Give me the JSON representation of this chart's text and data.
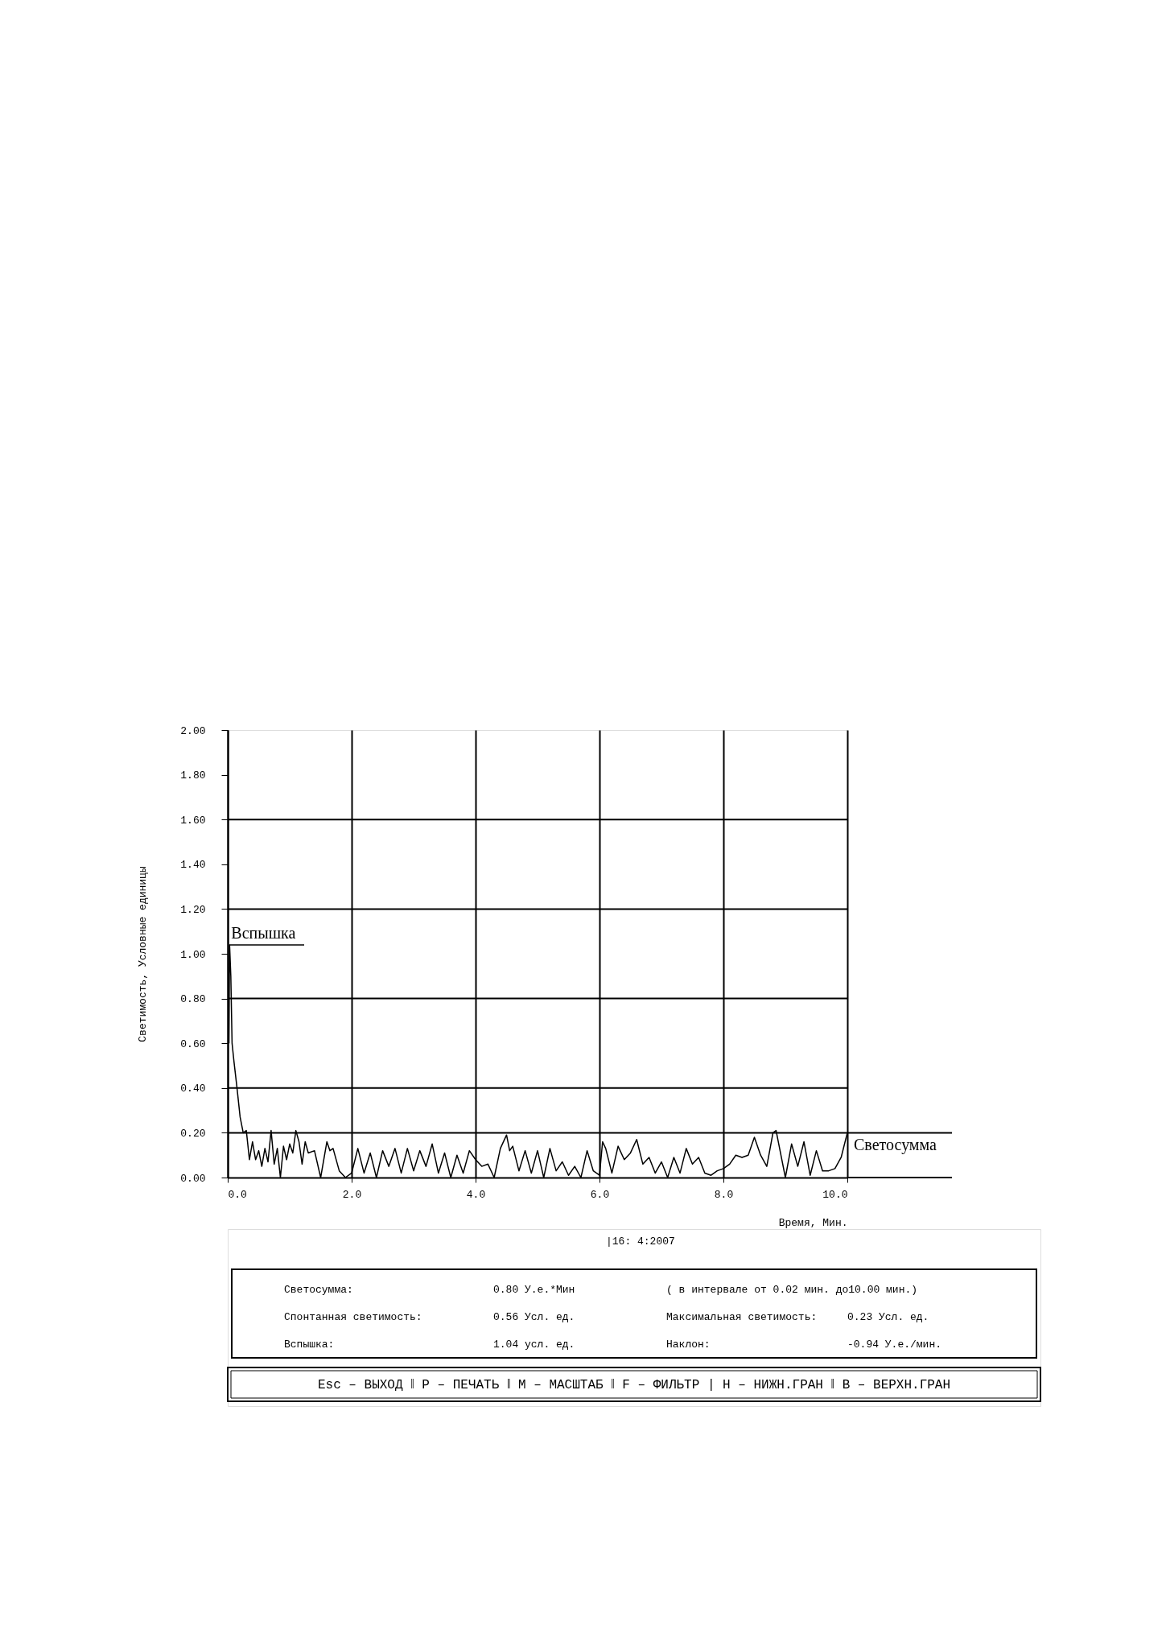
{
  "chart_data": {
    "type": "line",
    "xlabel": "Время, Мин.",
    "ylabel": "Светимость, Условные единицы",
    "xlim": [
      0,
      10
    ],
    "ylim": [
      0,
      2
    ],
    "xticks": [
      {
        "value": 0,
        "label": "0.0"
      },
      {
        "value": 2,
        "label": "2.0"
      },
      {
        "value": 4,
        "label": "4.0"
      },
      {
        "value": 6,
        "label": "6.0"
      },
      {
        "value": 8,
        "label": "8.0"
      },
      {
        "value": 10,
        "label": "10.0"
      }
    ],
    "yticks": [
      {
        "value": 0,
        "label": "0.00"
      },
      {
        "value": 0.2,
        "label": "0.20"
      },
      {
        "value": 0.4,
        "label": "0.40"
      },
      {
        "value": 0.6,
        "label": "0.60"
      },
      {
        "value": 0.8,
        "label": "0.80"
      },
      {
        "value": 1.0,
        "label": "1.00"
      },
      {
        "value": 1.2,
        "label": "1.20"
      },
      {
        "value": 1.4,
        "label": "1.40"
      },
      {
        "value": 1.6,
        "label": "1.60"
      },
      {
        "value": 1.8,
        "label": "1.80"
      },
      {
        "value": 2.0,
        "label": "2.00"
      }
    ],
    "grid": "x",
    "marker": "none",
    "line_style": "solid",
    "series": [
      {
        "color": "#000000",
        "x": [
          0.02,
          0.03,
          0.05,
          0.07,
          0.1,
          0.15,
          0.2,
          0.25,
          0.3,
          0.35,
          0.4,
          0.45,
          0.5,
          0.55,
          0.6,
          0.65,
          0.7,
          0.75,
          0.8,
          0.85,
          0.9,
          0.95,
          1.0,
          1.05,
          1.1,
          1.15,
          1.2,
          1.25,
          1.3,
          1.4,
          1.5,
          1.6,
          1.65,
          1.7,
          1.8,
          1.9,
          2.0,
          2.1,
          2.2,
          2.3,
          2.4,
          2.5,
          2.6,
          2.7,
          2.8,
          2.9,
          3.0,
          3.1,
          3.2,
          3.3,
          3.4,
          3.5,
          3.6,
          3.7,
          3.8,
          3.9,
          4.0,
          4.1,
          4.2,
          4.3,
          4.4,
          4.5,
          4.55,
          4.6,
          4.7,
          4.8,
          4.9,
          5.0,
          5.1,
          5.2,
          5.3,
          5.4,
          5.5,
          5.6,
          5.7,
          5.8,
          5.9,
          6.0,
          6.05,
          6.1,
          6.2,
          6.3,
          6.4,
          6.5,
          6.6,
          6.7,
          6.8,
          6.9,
          7.0,
          7.1,
          7.2,
          7.3,
          7.4,
          7.5,
          7.6,
          7.7,
          7.8,
          7.9,
          8.0,
          8.1,
          8.2,
          8.3,
          8.4,
          8.5,
          8.6,
          8.7,
          8.8,
          8.85,
          8.9,
          9.0,
          9.1,
          9.2,
          9.3,
          9.4,
          9.5,
          9.6,
          9.7,
          9.8,
          9.9,
          10.0
        ],
        "values": [
          0.6,
          1.04,
          0.9,
          0.6,
          0.52,
          0.4,
          0.27,
          0.2,
          0.21,
          0.08,
          0.16,
          0.08,
          0.12,
          0.05,
          0.13,
          0.07,
          0.21,
          0.06,
          0.13,
          0.0,
          0.14,
          0.08,
          0.15,
          0.11,
          0.21,
          0.16,
          0.06,
          0.16,
          0.11,
          0.12,
          0.0,
          0.16,
          0.12,
          0.13,
          0.03,
          0.0,
          0.02,
          0.13,
          0.02,
          0.11,
          0.0,
          0.12,
          0.05,
          0.13,
          0.02,
          0.13,
          0.03,
          0.12,
          0.05,
          0.15,
          0.02,
          0.11,
          0.0,
          0.1,
          0.02,
          0.12,
          0.08,
          0.05,
          0.06,
          0.0,
          0.13,
          0.19,
          0.12,
          0.14,
          0.03,
          0.12,
          0.02,
          0.12,
          0.0,
          0.13,
          0.03,
          0.07,
          0.01,
          0.05,
          0.0,
          0.12,
          0.03,
          0.01,
          0.16,
          0.13,
          0.02,
          0.14,
          0.08,
          0.11,
          0.17,
          0.06,
          0.09,
          0.02,
          0.07,
          0.0,
          0.09,
          0.02,
          0.13,
          0.06,
          0.09,
          0.02,
          0.01,
          0.03,
          0.04,
          0.06,
          0.1,
          0.09,
          0.1,
          0.18,
          0.1,
          0.05,
          0.2,
          0.21,
          0.14,
          0.0,
          0.15,
          0.05,
          0.16,
          0.01,
          0.12,
          0.03,
          0.03,
          0.04,
          0.09,
          0.2
        ]
      }
    ],
    "ref_lines": [
      {
        "axis": "y",
        "value": 0.2,
        "label": "Светосумма"
      },
      {
        "axis": "y",
        "value": 0.4,
        "label": null
      },
      {
        "axis": "y",
        "value": 0.8,
        "label": null
      },
      {
        "axis": "y",
        "value": 1.2,
        "label": null
      },
      {
        "axis": "y",
        "value": 1.6,
        "label": null
      }
    ],
    "annotations": [
      {
        "text": "Вспышка",
        "x": 0.03,
        "y": 1.04
      },
      "|16: 4:2007",
      "Светосумма:",
      "0.80 У.е.*Мин",
      "( в интервале от 0.02 мин. до10.00 мин.)",
      "Спонтанная светимость:",
      "0.56 Усл. ед.",
      "Максимальная светимость:",
      "0.23 Усл. ед.",
      "Вспышка:",
      "1.04 усл. ед.",
      "Наклон:",
      "-0.94 У.е./мин.",
      "Esc – ВЫХОД ‖ P – ПЕЧАТЬ ‖ M – МАСШТАБ ‖ F – ФИЛЬТР | Н – НИЖН.ГРАН ‖ В – ВЕРХН.ГРАН"
    ]
  }
}
